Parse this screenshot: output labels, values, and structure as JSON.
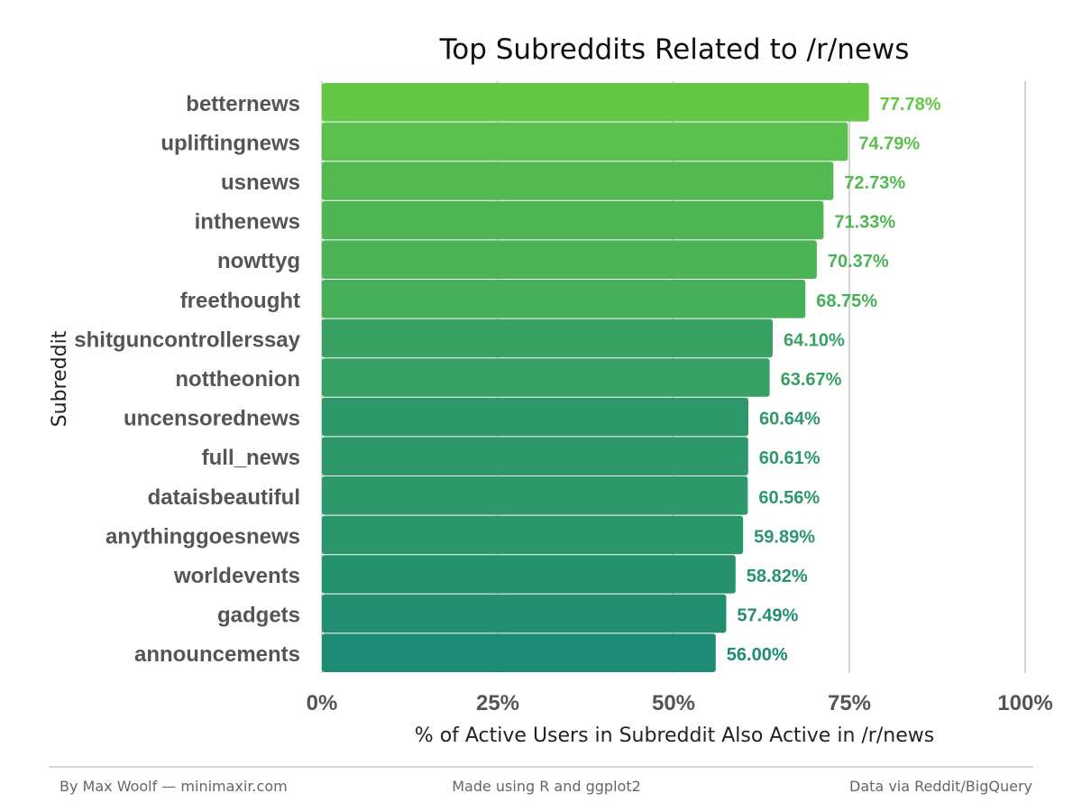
{
  "chart_data": {
    "type": "bar",
    "orientation": "horizontal",
    "title": "Top Subreddits Related to /r/news",
    "xlabel": "% of Active Users in Subreddit Also Active in /r/news",
    "ylabel": "Subreddit",
    "xlim": [
      0,
      100
    ],
    "xticks": [
      0,
      25,
      50,
      75,
      100
    ],
    "xtick_labels": [
      "0%",
      "25%",
      "50%",
      "75%",
      "100%"
    ],
    "grid": "vertical major lines",
    "legend": "none",
    "color_low": "#1e8b74",
    "color_high": "#64c746",
    "categories": [
      "betternews",
      "upliftingnews",
      "usnews",
      "inthenews",
      "nowttyg",
      "freethought",
      "shitguncontrollerssay",
      "nottheonion",
      "uncensorednews",
      "full_news",
      "dataisbeautiful",
      "anythinggoesnews",
      "worldevents",
      "gadgets",
      "announcements"
    ],
    "values": [
      77.78,
      74.79,
      72.73,
      71.33,
      70.37,
      68.75,
      64.1,
      63.67,
      60.64,
      60.61,
      60.56,
      59.89,
      58.82,
      57.49,
      56.0
    ],
    "data_labels": [
      "77.78%",
      "74.79%",
      "72.73%",
      "71.33%",
      "70.37%",
      "68.75%",
      "64.10%",
      "63.67%",
      "60.64%",
      "60.61%",
      "60.56%",
      "59.89%",
      "58.82%",
      "57.49%",
      "56.00%"
    ]
  },
  "footer": {
    "left": "By Max Woolf — minimaxir.com",
    "center": "Made using R and ggplot2",
    "right": "Data via Reddit/BigQuery"
  }
}
